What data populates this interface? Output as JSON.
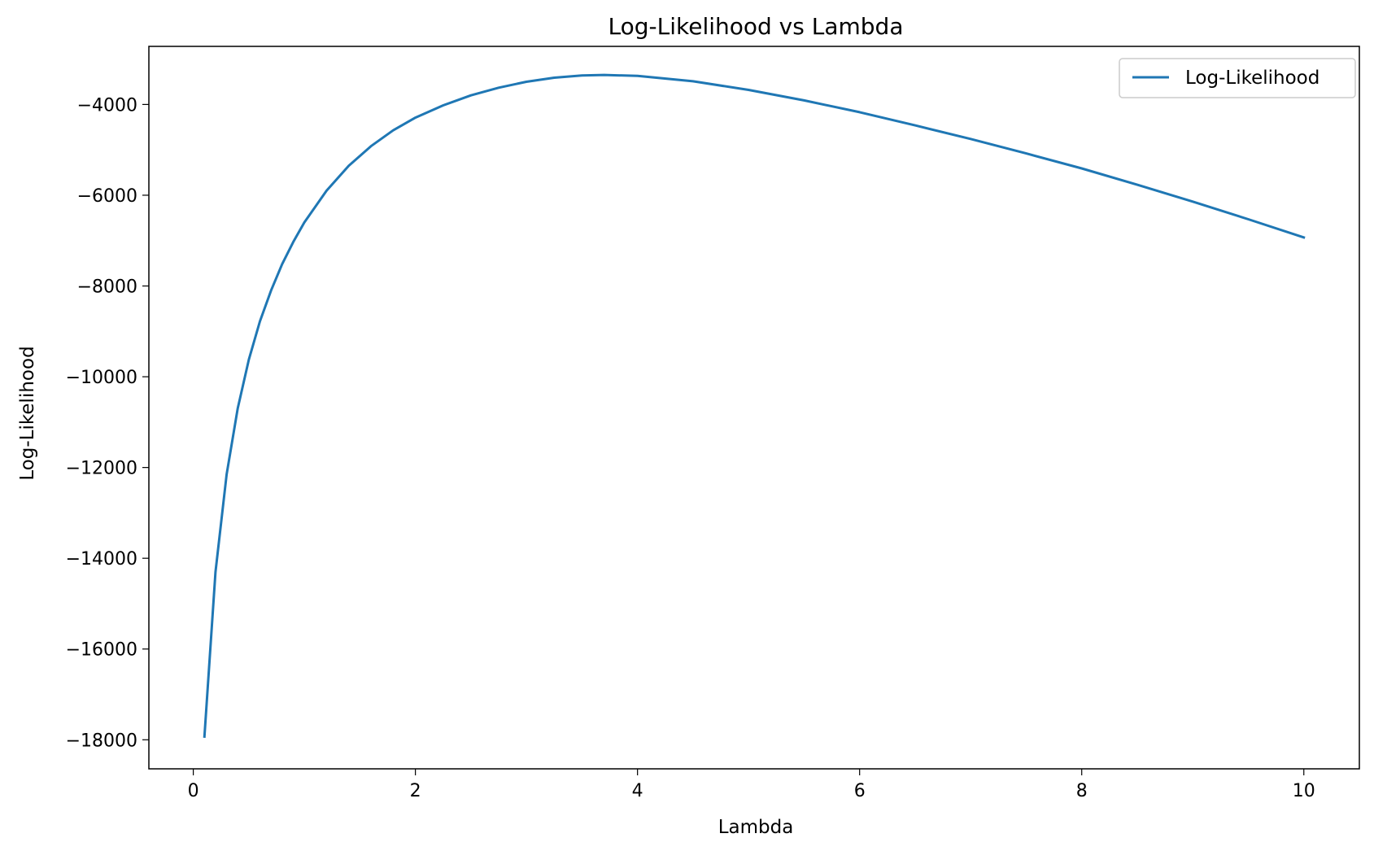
{
  "chart_data": {
    "type": "line",
    "title": "Log-Likelihood vs Lambda",
    "xlabel": "Lambda",
    "ylabel": "Log-Likelihood",
    "xlim": [
      -0.4,
      10.5
    ],
    "ylim": [
      -18640,
      -2720
    ],
    "xticks": [
      0,
      2,
      4,
      6,
      8,
      10
    ],
    "xtick_labels": [
      "0",
      "2",
      "4",
      "6",
      "8",
      "10"
    ],
    "yticks": [
      -18000,
      -16000,
      -14000,
      -12000,
      -10000,
      -8000,
      -6000,
      -4000
    ],
    "ytick_labels": [
      "−18000",
      "−16000",
      "−14000",
      "−12000",
      "−10000",
      "−8000",
      "−6000",
      "−4000"
    ],
    "grid": false,
    "legend_position": "top-right",
    "series": [
      {
        "name": "Log-Likelihood",
        "color": "#1f77b4",
        "x": [
          0.1,
          0.2,
          0.3,
          0.4,
          0.5,
          0.6,
          0.7,
          0.8,
          0.9,
          1.0,
          1.2,
          1.4,
          1.6,
          1.8,
          2.0,
          2.25,
          2.5,
          2.75,
          3.0,
          3.25,
          3.5,
          3.7,
          4.0,
          4.5,
          5.0,
          5.5,
          6.0,
          6.5,
          7.0,
          7.5,
          8.0,
          8.5,
          9.0,
          9.5,
          10.0
        ],
        "y": [
          -17930,
          -14300,
          -12150,
          -10700,
          -9620,
          -8780,
          -8100,
          -7520,
          -7030,
          -6600,
          -5900,
          -5350,
          -4920,
          -4570,
          -4290,
          -4020,
          -3800,
          -3630,
          -3500,
          -3410,
          -3360,
          -3350,
          -3370,
          -3490,
          -3680,
          -3910,
          -4170,
          -4460,
          -4760,
          -5080,
          -5410,
          -5770,
          -6140,
          -6530,
          -6930
        ]
      }
    ]
  }
}
